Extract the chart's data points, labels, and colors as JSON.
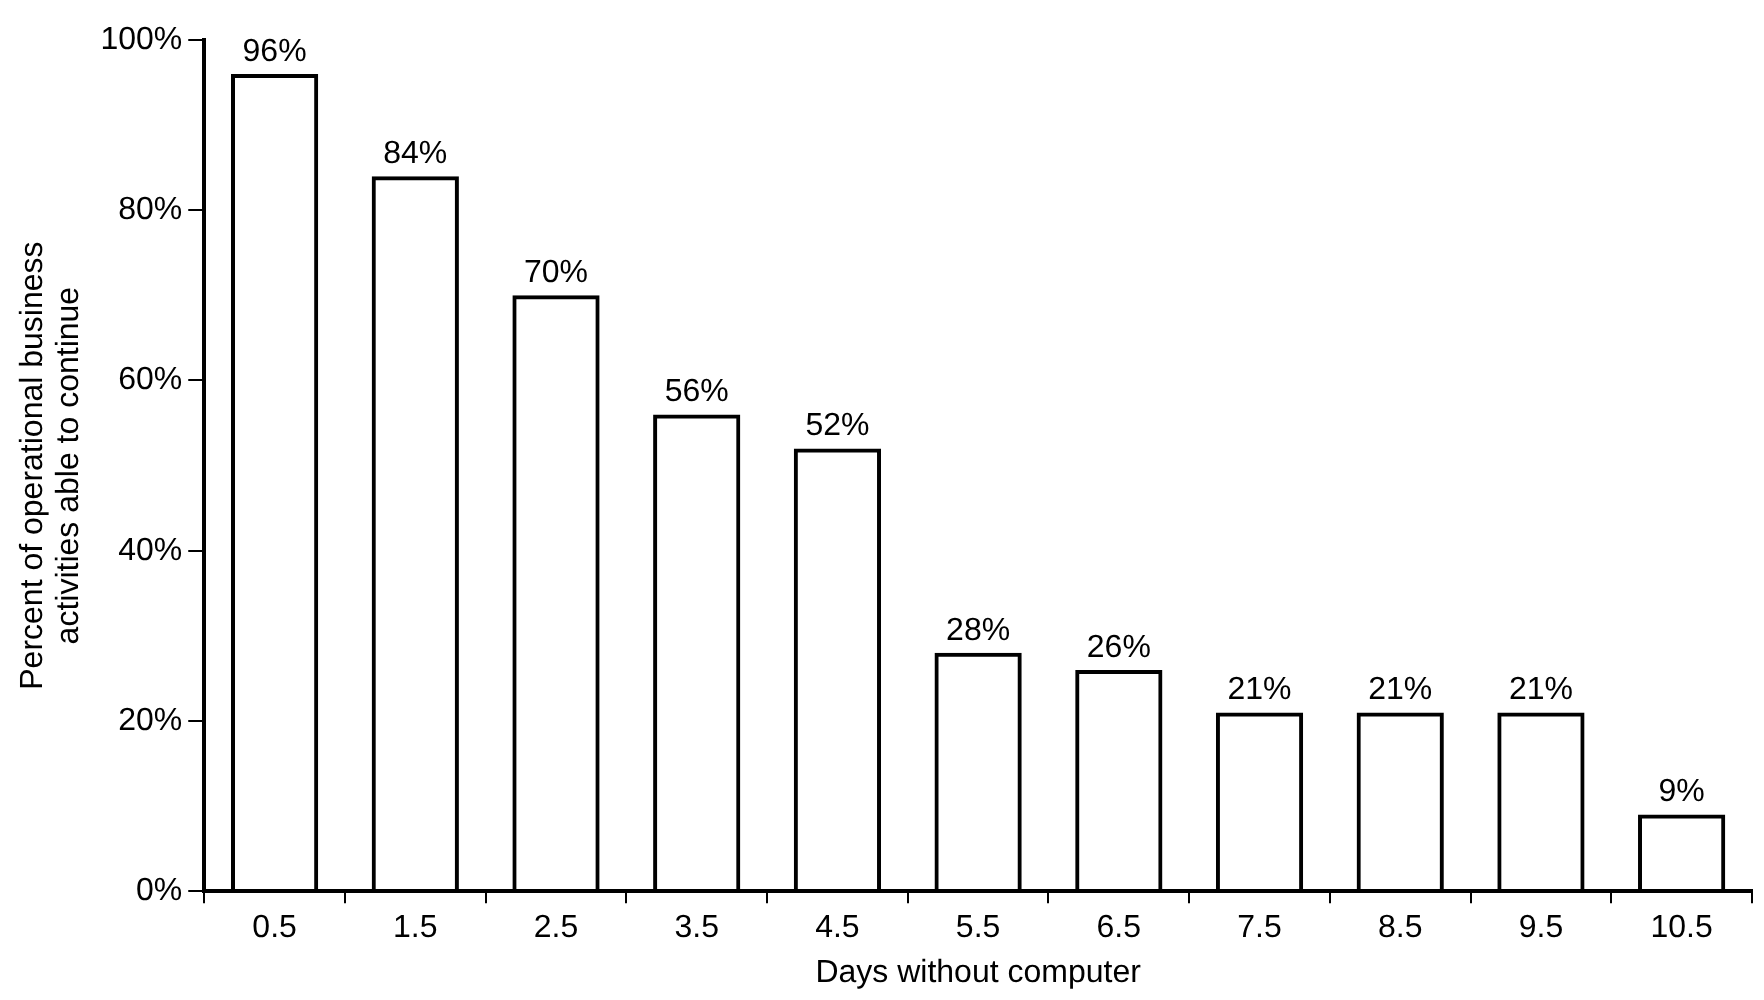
{
  "chart_data": {
    "type": "bar",
    "xlabel": "Days without computer",
    "ylabel": "Percent of operational business activities able to continue",
    "categories": [
      "0.5",
      "1.5",
      "2.5",
      "3.5",
      "4.5",
      "5.5",
      "6.5",
      "7.5",
      "8.5",
      "9.5",
      "10.5"
    ],
    "values": [
      96,
      84,
      70,
      56,
      52,
      28,
      26,
      21,
      21,
      21,
      9
    ],
    "value_labels": [
      "96%",
      "84%",
      "70%",
      "56%",
      "52%",
      "28%",
      "26%",
      "21%",
      "21%",
      "21%",
      "9%"
    ],
    "color": "#000000",
    "ylim": [
      0,
      100
    ],
    "yticks": [
      {
        "value": 0,
        "label": "0%"
      },
      {
        "value": 20,
        "label": "20%"
      },
      {
        "value": 40,
        "label": "40%"
      },
      {
        "value": 60,
        "label": "60%"
      },
      {
        "value": 80,
        "label": "80%"
      },
      {
        "value": 100,
        "label": "100%"
      }
    ],
    "grid": false,
    "legend": false
  }
}
